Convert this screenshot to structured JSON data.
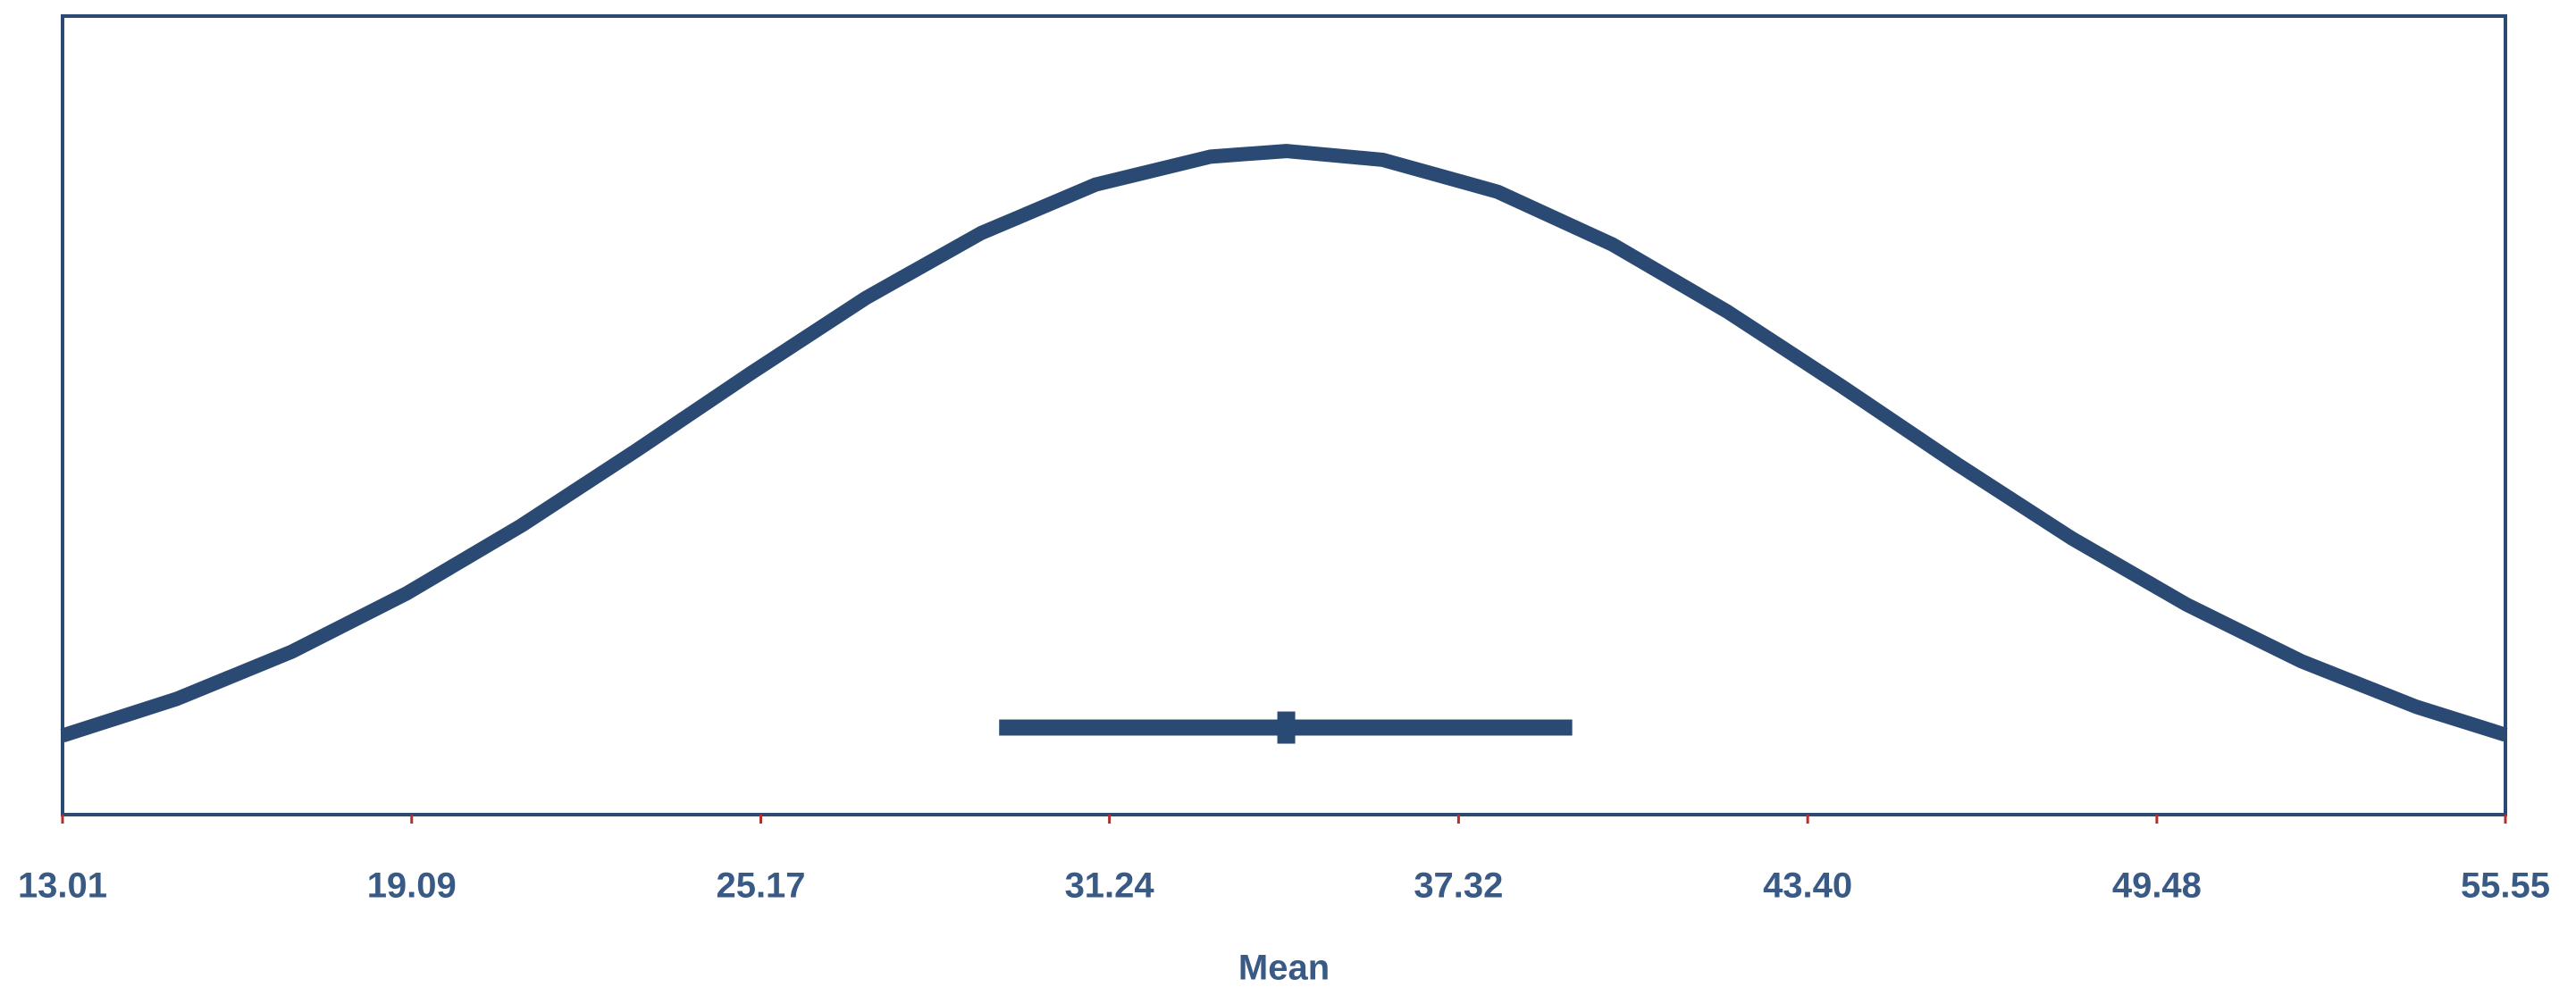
{
  "chart_data": {
    "type": "line",
    "x_label": "Mean",
    "xlim": [
      13.01,
      55.55
    ],
    "xticks": [
      13.01,
      19.09,
      25.17,
      31.24,
      37.32,
      {
        "value": 43.4,
        "label": "43.40"
      },
      49.48,
      55.55
    ],
    "ylim": [
      0,
      1
    ],
    "series": [
      {
        "color": "#2b4a73",
        "x": [
          13.01,
          15,
          17,
          19,
          21,
          23,
          25,
          27,
          29,
          31,
          33,
          34.32,
          36,
          38,
          40,
          42,
          44,
          46,
          48,
          50,
          52,
          54,
          55.55
        ],
        "values": [
          0.099,
          0.145,
          0.204,
          0.277,
          0.362,
          0.456,
          0.553,
          0.647,
          0.728,
          0.789,
          0.824,
          0.831,
          0.82,
          0.78,
          0.714,
          0.63,
          0.536,
          0.439,
          0.346,
          0.263,
          0.192,
          0.135,
          0.1
        ]
      }
    ],
    "interval": {
      "low": 29.32,
      "mean": 34.32,
      "high": 39.3,
      "color": "#2b4a73"
    }
  }
}
